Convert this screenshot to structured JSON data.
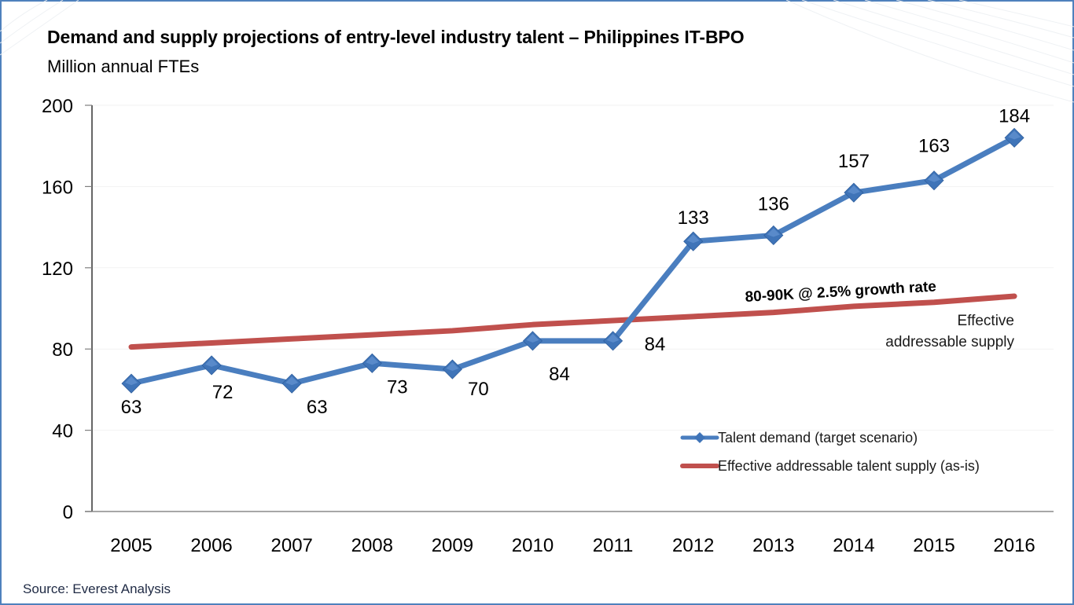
{
  "title": "Demand and supply projections of entry-level industry talent – Philippines IT-BPO",
  "subtitle": "Million annual FTEs",
  "source": "Source: Everest Analysis",
  "colors": {
    "demand": "#4a7ebf",
    "supply": "#c0504d",
    "frame": "#4f81bd"
  },
  "chart_data": {
    "type": "line",
    "title": "Demand and supply projections of entry-level industry talent – Philippines IT-BPO",
    "subtitle": "Million annual FTEs",
    "xlabel": "",
    "ylabel": "Million annual FTEs",
    "categories": [
      "2005",
      "2006",
      "2007",
      "2008",
      "2009",
      "2010",
      "2011",
      "2012",
      "2013",
      "2014",
      "2015",
      "2016"
    ],
    "ylim": [
      0,
      200
    ],
    "yticks": [
      0,
      40,
      80,
      120,
      160,
      200
    ],
    "ytick_labels": [
      "0",
      "40",
      "80",
      "120",
      "160",
      "200"
    ],
    "grid": true,
    "legend_position": "bottom-right",
    "series": [
      {
        "name": "Talent demand (target scenario)",
        "values": [
          63,
          72,
          63,
          73,
          70,
          84,
          84,
          133,
          136,
          157,
          163,
          184
        ],
        "labels": [
          "63",
          "72",
          "63",
          "73",
          "70",
          "84",
          "84",
          "133",
          "136",
          "157",
          "163",
          "184"
        ],
        "marker": "diamond",
        "color": "#4a7ebf"
      },
      {
        "name": "Effective addressable talent supply (as-is)",
        "values": [
          81,
          83,
          85,
          87,
          89,
          92,
          94,
          96,
          98,
          101,
          103,
          106
        ],
        "marker": "none",
        "color": "#c0504d"
      }
    ],
    "annotations": [
      {
        "text": "80-90K @ 2.5% growth rate",
        "style": "bold"
      },
      {
        "text": "Effective",
        "style": "normal"
      },
      {
        "text": "addressable supply",
        "style": "normal"
      }
    ]
  }
}
